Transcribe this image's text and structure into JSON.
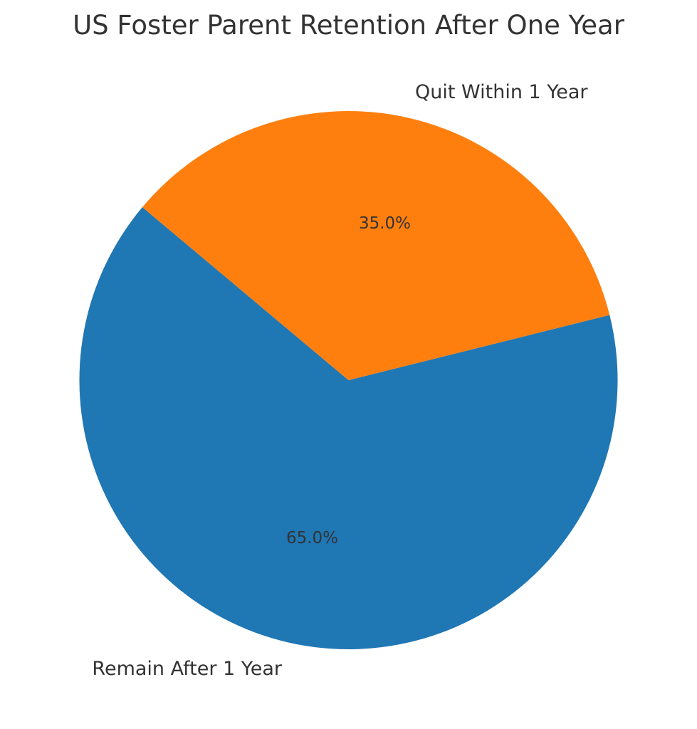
{
  "chart_data": {
    "type": "pie",
    "title": "US Foster Parent Retention After One Year",
    "categories": [
      "Remain After 1 Year",
      "Quit Within 1 Year"
    ],
    "values": [
      65.0,
      35.0
    ],
    "value_labels": [
      "65.0%",
      "35.0%"
    ],
    "colors": [
      "#1f77b4",
      "#ff7f0e"
    ],
    "start_angle_deg": 140,
    "direction": "counterclockwise",
    "legend": "none"
  }
}
